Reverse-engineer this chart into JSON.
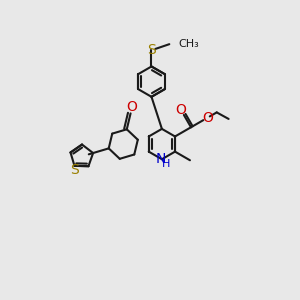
{
  "bg_color": "#e8e8e8",
  "bond_color": "#1a1a1a",
  "bond_width": 1.5,
  "atom_colors": {
    "S": "#9a8000",
    "N": "#0000cc",
    "O": "#cc0000",
    "C": "#1a1a1a"
  },
  "figsize": [
    3.0,
    3.0
  ],
  "dpi": 100
}
